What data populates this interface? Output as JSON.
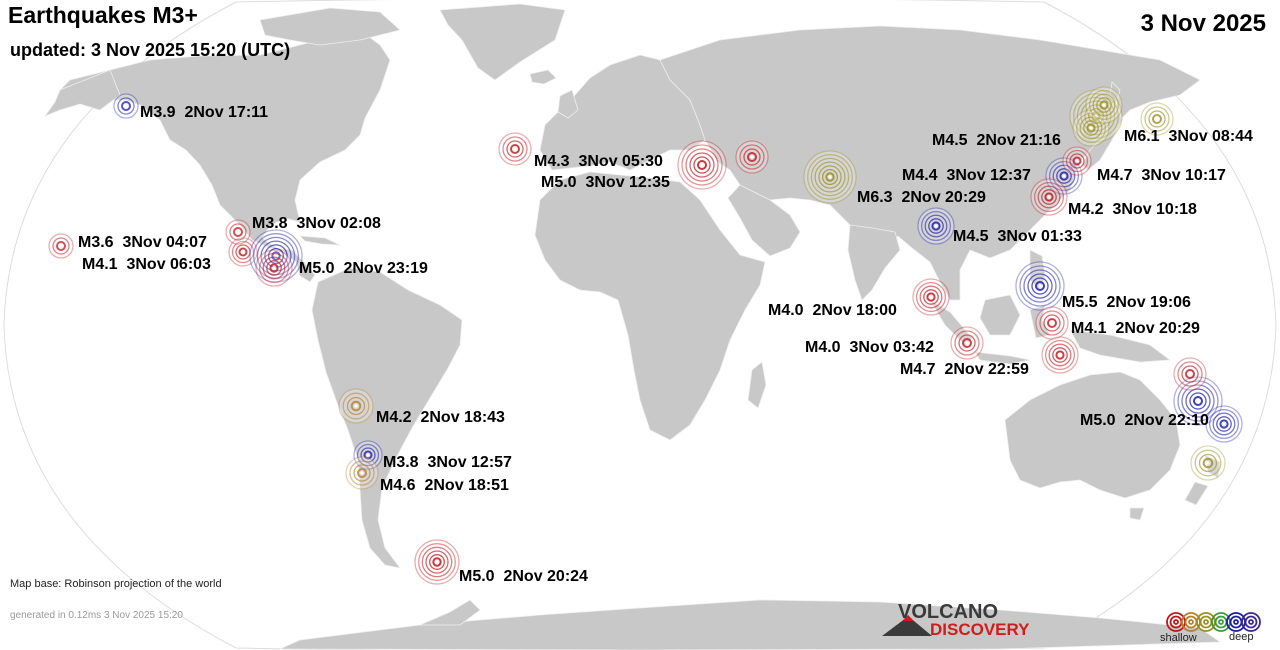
{
  "header": {
    "title": "Earthquakes M3+",
    "updated": "updated:  3 Nov 2025 15:20 (UTC)",
    "date": "3 Nov 2025"
  },
  "colors": {
    "ocean": "#ffffff",
    "land": "#c8c8c8",
    "border": "#e8e8e8",
    "shallow": "#c0161b",
    "intermediate": "#b5802a",
    "mid": "#9c8f22",
    "deep": "#1c1ca8"
  },
  "quakes": [
    {
      "label": "M3.9  2Nov 17:11",
      "depth": "deep"
    },
    {
      "label": "M3.6  3Nov 04:07",
      "depth": "shallow"
    },
    {
      "label": "M4.1  3Nov 06:03",
      "depth": "shallow"
    },
    {
      "label": "M3.8  3Nov 02:08",
      "depth": "shallow"
    },
    {
      "label": "M5.0  2Nov 23:19",
      "depth": "deep"
    },
    {
      "label": "M4.3  3Nov 05:30",
      "depth": "shallow"
    },
    {
      "label": "M5.0  3Nov 12:35",
      "depth": "shallow"
    },
    {
      "label": "M6.3  2Nov 20:29",
      "depth": "mid"
    },
    {
      "label": "M4.5  3Nov 01:33",
      "depth": "deep"
    },
    {
      "label": "M4.5  2Nov 21:16",
      "depth": "mid"
    },
    {
      "label": "M6.1  3Nov 08:44",
      "depth": "mid"
    },
    {
      "label": "M4.4  3Nov 12:37",
      "depth": "deep"
    },
    {
      "label": "M4.7  3Nov 10:17",
      "depth": "shallow"
    },
    {
      "label": "M4.2  3Nov 10:18",
      "depth": "shallow"
    },
    {
      "label": "M5.5  2Nov 19:06",
      "depth": "deep"
    },
    {
      "label": "M4.1  2Nov 20:29",
      "depth": "shallow"
    },
    {
      "label": "M4.0  2Nov 18:00",
      "depth": "shallow"
    },
    {
      "label": "M4.0  3Nov 03:42",
      "depth": "shallow"
    },
    {
      "label": "M4.7  2Nov 22:59",
      "depth": "shallow"
    },
    {
      "label": "M5.0  2Nov 22:10",
      "depth": "deep"
    },
    {
      "label": "M4.2  2Nov 18:43",
      "depth": "intermediate"
    },
    {
      "label": "M3.8  3Nov 12:57",
      "depth": "deep"
    },
    {
      "label": "M4.6  2Nov 18:51",
      "depth": "intermediate"
    },
    {
      "label": "M5.0  2Nov 20:24",
      "depth": "shallow"
    }
  ],
  "footer": {
    "map_base": "Map base: Robinson projection of the world",
    "generated": "generated in 0.12ms  3 Nov 2025 15:20",
    "logo_top": "VOLCANO",
    "logo_bottom": "DISCOVERY",
    "legend_shallow": "shallow",
    "legend_deep": "deep",
    "legend_colors": [
      "#c0161b",
      "#b5802a",
      "#9c8f22",
      "#3c9a3c",
      "#1c1ca8",
      "#3c2a8a"
    ]
  }
}
